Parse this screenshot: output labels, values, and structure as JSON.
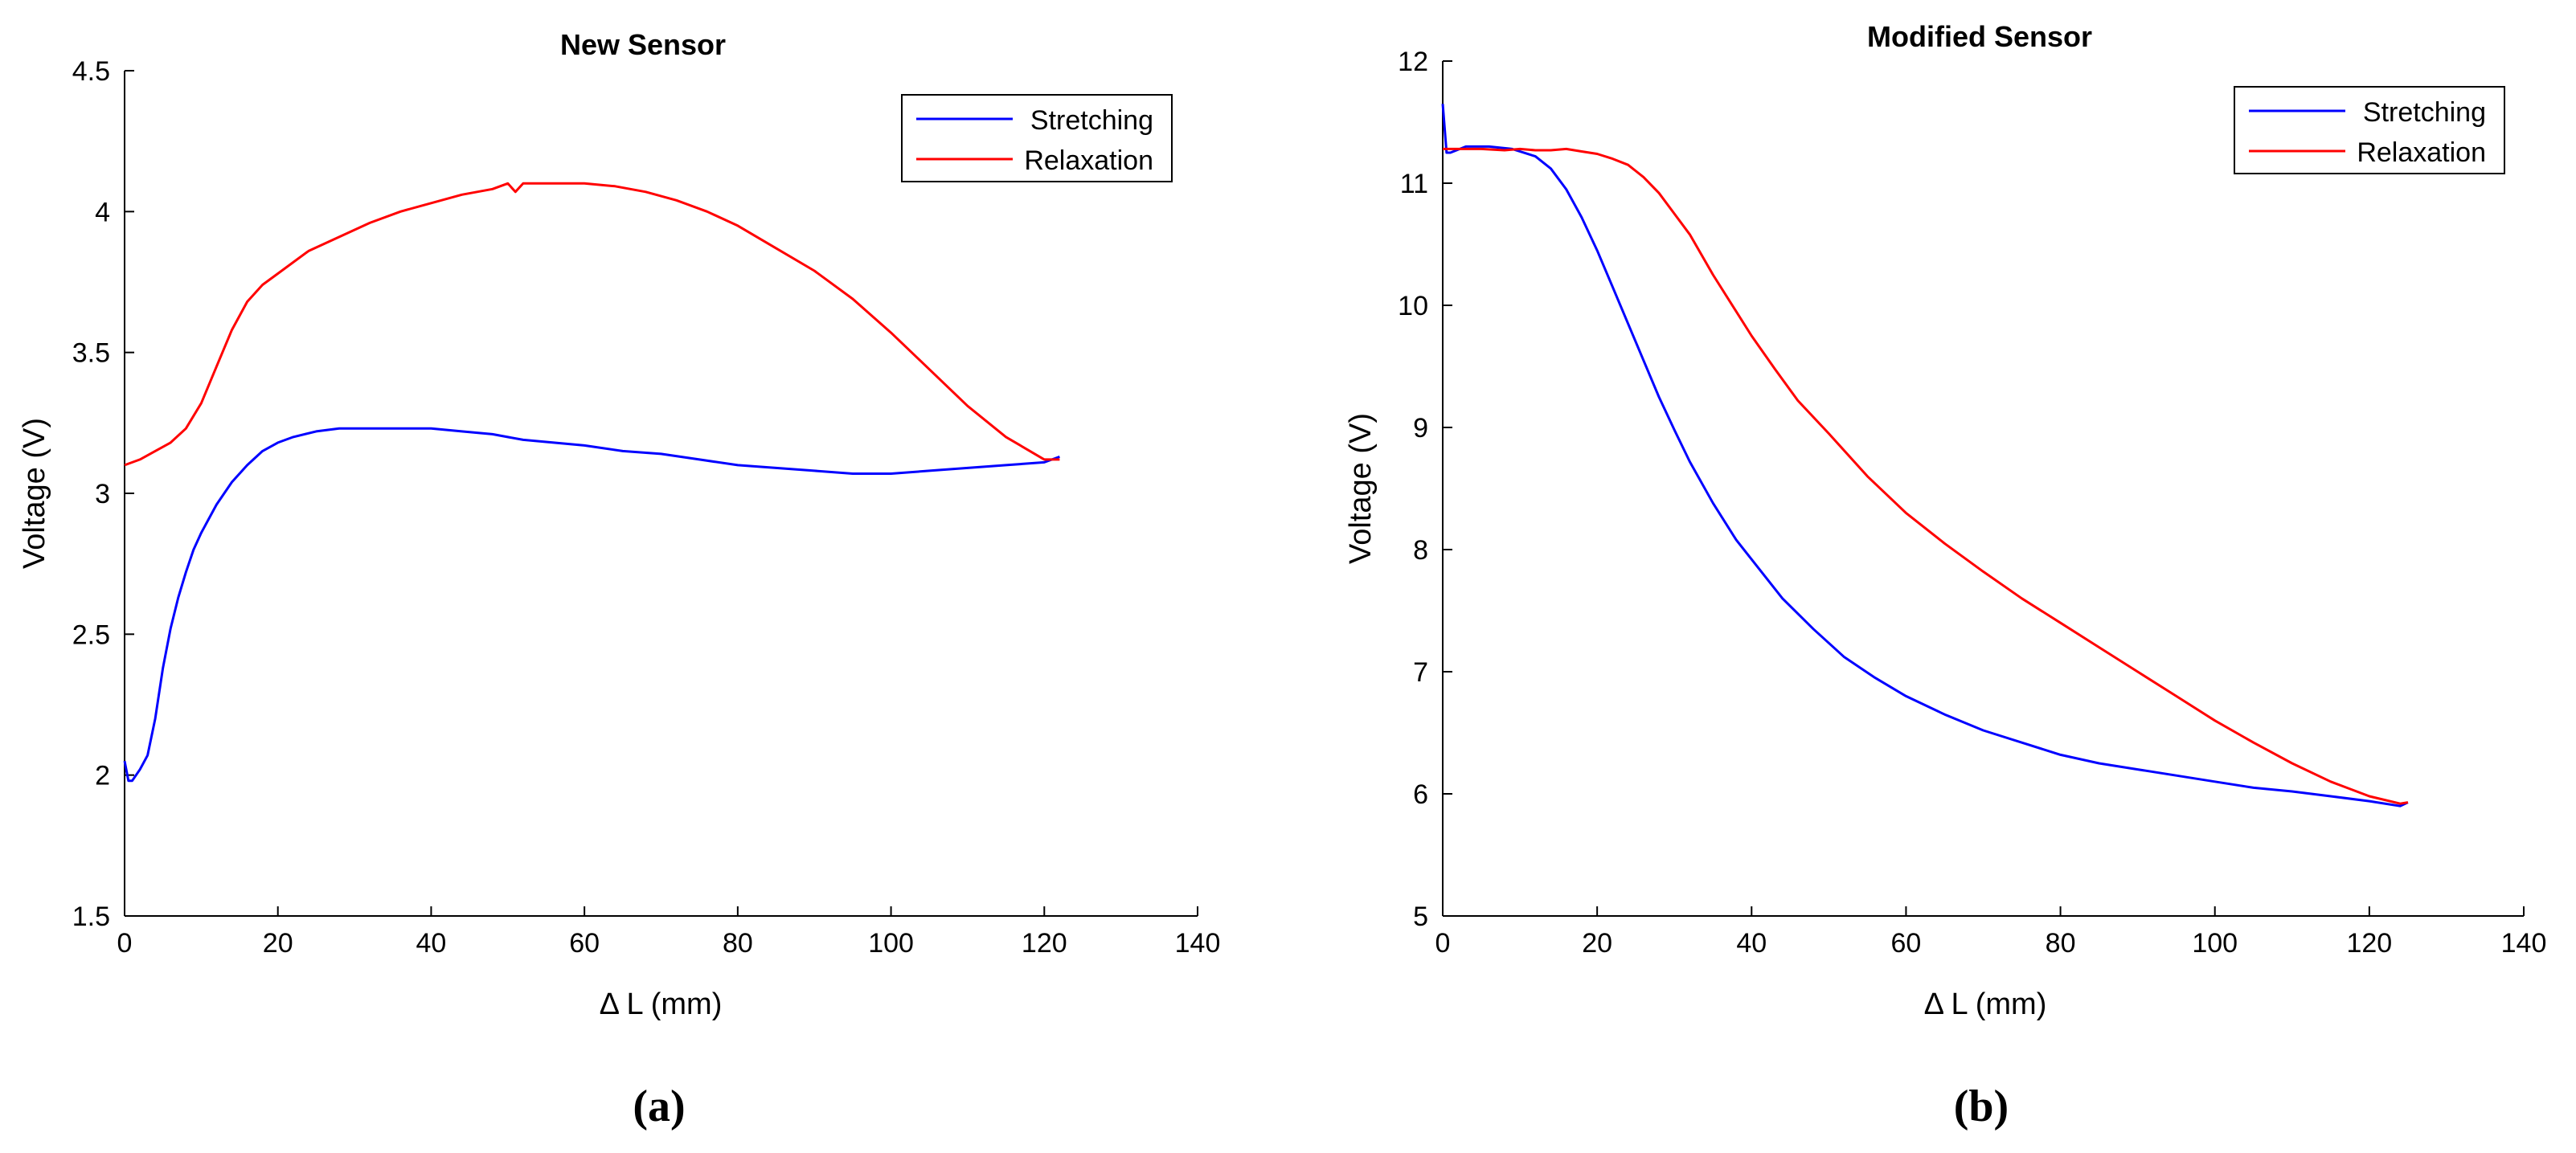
{
  "chart_data": [
    {
      "type": "line",
      "title": "New Sensor",
      "xlabel": "Δ L (mm)",
      "ylabel": "Voltage (V)",
      "xlim": [
        0,
        140
      ],
      "ylim": [
        1.5,
        4.5
      ],
      "xticks": [
        0,
        20,
        40,
        60,
        80,
        100,
        120,
        140
      ],
      "yticks": [
        1.5,
        2,
        2.5,
        3,
        3.5,
        4,
        4.5
      ],
      "grid": false,
      "legend_position": "top-right",
      "caption": "(a)",
      "series": [
        {
          "name": "Stretching",
          "color": "#0000ff",
          "x": [
            0,
            0.5,
            1,
            2,
            3,
            4,
            5,
            6,
            7,
            8,
            9,
            10,
            12,
            14,
            16,
            18,
            20,
            22,
            25,
            28,
            32,
            36,
            40,
            44,
            48,
            52,
            56,
            60,
            65,
            70,
            75,
            80,
            85,
            90,
            95,
            100,
            105,
            110,
            115,
            120,
            122
          ],
          "y": [
            2.05,
            1.98,
            1.98,
            2.02,
            2.07,
            2.2,
            2.38,
            2.52,
            2.63,
            2.72,
            2.8,
            2.86,
            2.96,
            3.04,
            3.1,
            3.15,
            3.18,
            3.2,
            3.22,
            3.23,
            3.23,
            3.23,
            3.23,
            3.22,
            3.21,
            3.19,
            3.18,
            3.17,
            3.15,
            3.14,
            3.12,
            3.1,
            3.09,
            3.08,
            3.07,
            3.07,
            3.08,
            3.09,
            3.1,
            3.11,
            3.13
          ]
        },
        {
          "name": "Relaxation",
          "color": "#ff0000",
          "x": [
            0,
            2,
            4,
            6,
            8,
            10,
            12,
            14,
            16,
            18,
            20,
            24,
            28,
            32,
            36,
            40,
            44,
            48,
            50,
            51,
            52,
            56,
            60,
            64,
            68,
            72,
            76,
            80,
            85,
            90,
            95,
            100,
            105,
            110,
            115,
            120,
            122
          ],
          "y": [
            3.1,
            3.12,
            3.15,
            3.18,
            3.23,
            3.32,
            3.45,
            3.58,
            3.68,
            3.74,
            3.78,
            3.86,
            3.91,
            3.96,
            4.0,
            4.03,
            4.06,
            4.08,
            4.1,
            4.07,
            4.1,
            4.1,
            4.1,
            4.09,
            4.07,
            4.04,
            4.0,
            3.95,
            3.87,
            3.79,
            3.69,
            3.57,
            3.44,
            3.31,
            3.2,
            3.12,
            3.12
          ]
        }
      ]
    },
    {
      "type": "line",
      "title": "Modified Sensor",
      "xlabel": "Δ L (mm)",
      "ylabel": "Voltage (V)",
      "xlim": [
        0,
        140
      ],
      "ylim": [
        5,
        12
      ],
      "xticks": [
        0,
        20,
        40,
        60,
        80,
        100,
        120,
        140
      ],
      "yticks": [
        5,
        6,
        7,
        8,
        9,
        10,
        11,
        12
      ],
      "grid": false,
      "legend_position": "top-right",
      "caption": "(b)",
      "series": [
        {
          "name": "Stretching",
          "color": "#0000ff",
          "x": [
            0,
            0.5,
            1,
            3,
            6,
            9,
            12,
            14,
            16,
            18,
            20,
            22,
            24,
            26,
            28,
            30,
            32,
            35,
            38,
            40,
            44,
            48,
            52,
            56,
            60,
            65,
            70,
            75,
            80,
            85,
            90,
            95,
            100,
            105,
            110,
            115,
            120,
            124,
            125
          ],
          "y": [
            11.65,
            11.25,
            11.25,
            11.3,
            11.3,
            11.28,
            11.22,
            11.12,
            10.95,
            10.72,
            10.45,
            10.15,
            9.85,
            9.55,
            9.25,
            8.98,
            8.72,
            8.38,
            8.08,
            7.92,
            7.6,
            7.35,
            7.12,
            6.95,
            6.8,
            6.65,
            6.52,
            6.42,
            6.32,
            6.25,
            6.2,
            6.15,
            6.1,
            6.05,
            6.02,
            5.98,
            5.94,
            5.9,
            5.93
          ]
        },
        {
          "name": "Relaxation",
          "color": "#ff0000",
          "x": [
            0,
            2,
            5,
            8,
            10,
            12,
            14,
            16,
            18,
            20,
            22,
            24,
            26,
            28,
            30,
            32,
            35,
            38,
            40,
            43,
            46,
            50,
            55,
            60,
            65,
            70,
            75,
            80,
            85,
            90,
            95,
            100,
            105,
            110,
            115,
            120,
            124,
            125
          ],
          "y": [
            11.28,
            11.28,
            11.28,
            11.27,
            11.28,
            11.27,
            11.27,
            11.28,
            11.26,
            11.24,
            11.2,
            11.15,
            11.05,
            10.92,
            10.75,
            10.58,
            10.25,
            9.95,
            9.75,
            9.48,
            9.22,
            8.95,
            8.6,
            8.3,
            8.05,
            7.82,
            7.6,
            7.4,
            7.2,
            7.0,
            6.8,
            6.6,
            6.42,
            6.25,
            6.1,
            5.98,
            5.92,
            5.93
          ]
        }
      ]
    }
  ]
}
